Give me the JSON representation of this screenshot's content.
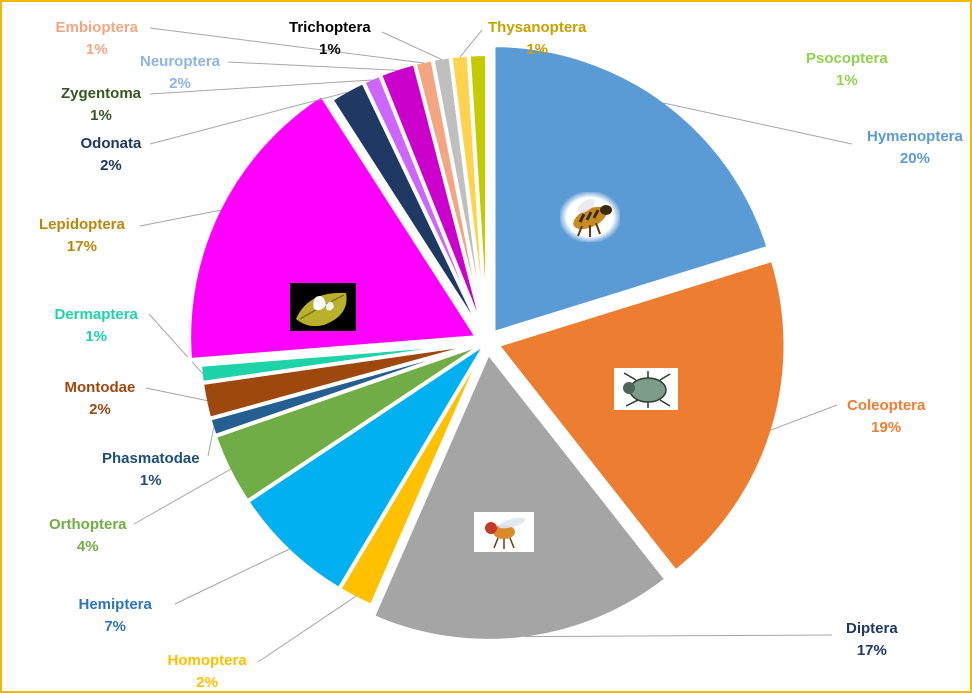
{
  "chart_data": {
    "type": "pie",
    "title": "",
    "slices": [
      {
        "name": "Hymenoptera",
        "value": 20,
        "label": "20%",
        "color": "#5b9bd5",
        "icon": "bee-icon"
      },
      {
        "name": "Coleoptera",
        "value": 19,
        "label": "19%",
        "color": "#ed7d31",
        "icon": "beetle-icon"
      },
      {
        "name": "Diptera",
        "value": 17,
        "label": "17%",
        "color": "#a5a5a5",
        "icon": "fruit-fly-icon"
      },
      {
        "name": "Homoptera",
        "value": 2,
        "label": "2%",
        "color": "#ffc000"
      },
      {
        "name": "Hemiptera",
        "value": 7,
        "label": "7%",
        "color": "#00b0f0"
      },
      {
        "name": "Orthoptera",
        "value": 4,
        "label": "4%",
        "color": "#70ad47"
      },
      {
        "name": "Phasmatodae",
        "value": 1,
        "label": "1%",
        "color": "#255e91"
      },
      {
        "name": "Montodae",
        "value": 2,
        "label": "2%",
        "color": "#9e480e"
      },
      {
        "name": "Dermaptera",
        "value": 1,
        "label": "1%",
        "color": "#1dd3a7"
      },
      {
        "name": "Lepidoptera",
        "value": 17,
        "label": "17%",
        "color": "#ff00ff",
        "icon": "butterfly-on-leaf-icon"
      },
      {
        "name": "Odonata",
        "value": 2,
        "label": "2%",
        "color": "#203864"
      },
      {
        "name": "Zygentoma",
        "value": 1,
        "label": "1%",
        "color": "#cc66ff"
      },
      {
        "name": "Neuroptera",
        "value": 2,
        "label": "2%",
        "color": "#cc00cc"
      },
      {
        "name": "Embioptera",
        "value": 1,
        "label": "1%",
        "color": "#f4a582"
      },
      {
        "name": "Trichoptera",
        "value": 1,
        "label": "1%",
        "color": "#bfbfbf"
      },
      {
        "name": "Thysanoptera",
        "value": 1,
        "label": "1%",
        "color": "#ffd34d"
      },
      {
        "name": "Psocoptera",
        "value": 1,
        "label": "1%",
        "color": "#c4cc00"
      }
    ],
    "label_colors": {
      "Hymenoptera": "#5b9bd5",
      "Coleoptera": "#ed7d31",
      "Diptera": "#1f3864",
      "Homoptera": "#ffc000",
      "Hemiptera": "#2e75b6",
      "Orthoptera": "#70ad47",
      "Phasmatodae": "#1f4e79",
      "Montodae": "#9e480e",
      "Dermaptera": "#1dd3a7",
      "Lepidoptera": "#b8860b",
      "Odonata": "#1f3864",
      "Zygentoma": "#375623",
      "Neuroptera": "#8eb4e3",
      "Embioptera": "#f4a582",
      "Trichoptera": "#000000",
      "Thysanoptera": "#c9a000",
      "Psocoptera": "#92d050"
    },
    "border_color": "#f5b800",
    "legend": "none"
  }
}
